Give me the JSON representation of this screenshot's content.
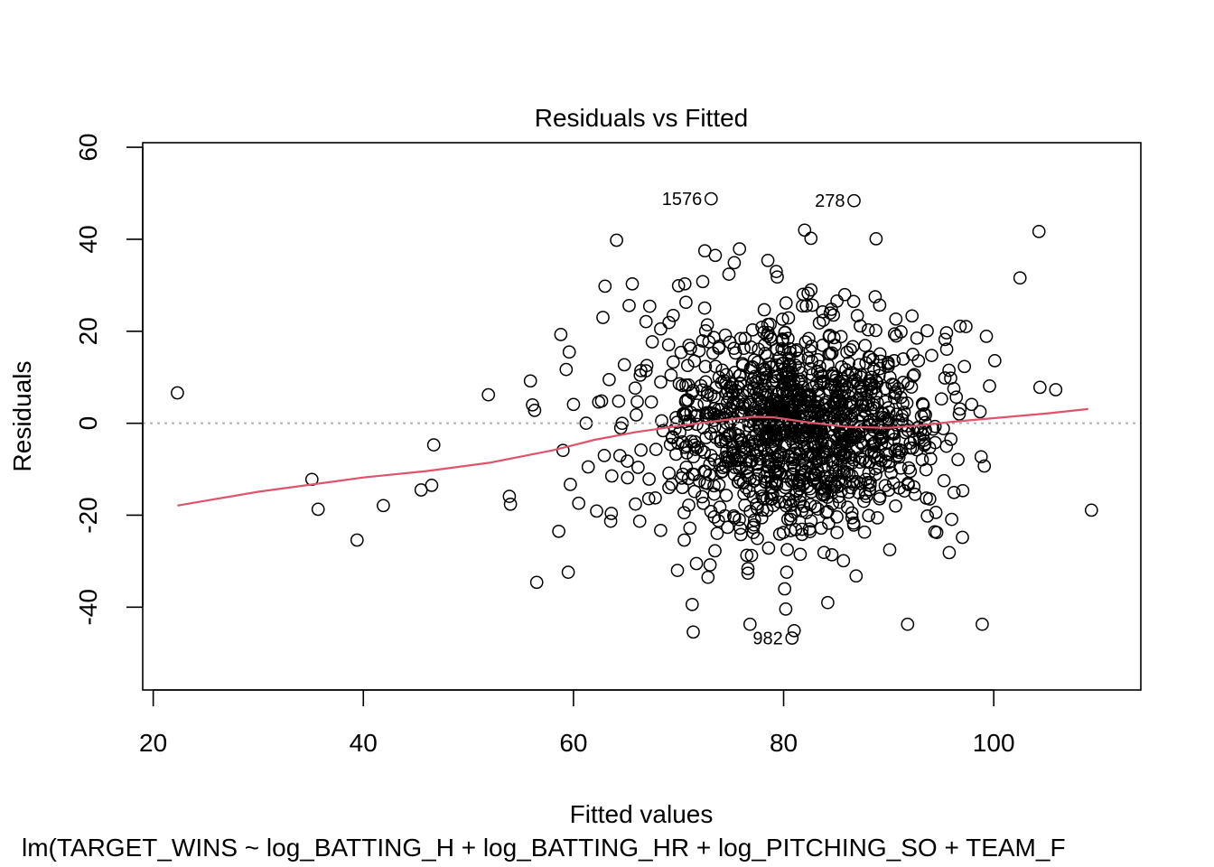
{
  "chart_data": {
    "type": "scatter",
    "title": "Residuals vs Fitted",
    "xlabel": "Fitted values",
    "ylabel": "Residuals",
    "subtitle": "lm(TARGET_WINS ~ log_BATTING_H + log_BATTING_HR + log_PITCHING_SO + TEAM_F",
    "xlim": [
      19,
      114
    ],
    "ylim": [
      -58,
      61
    ],
    "x_ticks": [
      20,
      40,
      60,
      80,
      100
    ],
    "y_ticks": [
      -40,
      -20,
      0,
      20,
      40,
      60
    ],
    "x_tick_labels": [
      "20",
      "40",
      "60",
      "80",
      "100"
    ],
    "y_tick_labels": [
      "-40",
      "-20",
      "0",
      "20",
      "40",
      "60"
    ],
    "reference_line": {
      "y": 0,
      "style": "dotted",
      "color": "#a6a6a6"
    },
    "smooth_color": "#df536b",
    "point_color": "#000000",
    "grid": false,
    "legend": "none",
    "labeled_points": [
      {
        "label": "1576",
        "x": 73.1,
        "y": 48.8
      },
      {
        "label": "278",
        "x": 86.7,
        "y": 48.4
      },
      {
        "label": "982",
        "x": 80.8,
        "y": -46.7
      }
    ],
    "smooth": [
      [
        22.3,
        -17.9
      ],
      [
        30,
        -14.9
      ],
      [
        40,
        -11.8
      ],
      [
        46,
        -10.4
      ],
      [
        52,
        -8.6
      ],
      [
        58,
        -5.9
      ],
      [
        62,
        -3.6
      ],
      [
        66,
        -1.9
      ],
      [
        70,
        -0.6
      ],
      [
        74,
        0.6
      ],
      [
        77,
        1.4
      ],
      [
        79,
        1.3
      ],
      [
        82,
        0.3
      ],
      [
        86,
        -0.8
      ],
      [
        90,
        -1.0
      ],
      [
        93,
        -0.5
      ],
      [
        96,
        0.3
      ],
      [
        100,
        1.1
      ],
      [
        105,
        2.1
      ],
      [
        109,
        3.1
      ]
    ],
    "outliers": [
      [
        22.3,
        6.6
      ],
      [
        35.1,
        -12.2
      ],
      [
        35.7,
        -18.7
      ],
      [
        39.4,
        -25.4
      ],
      [
        41.9,
        -17.9
      ],
      [
        45.5,
        -14.5
      ],
      [
        46.5,
        -13.5
      ],
      [
        46.7,
        -4.7
      ],
      [
        51.9,
        6.2
      ],
      [
        53.9,
        -15.9
      ],
      [
        54.0,
        -17.6
      ],
      [
        55.9,
        9.2
      ],
      [
        56.1,
        4.0
      ],
      [
        56.3,
        2.8
      ],
      [
        56.5,
        -34.6
      ],
      [
        58.6,
        -23.5
      ],
      [
        58.8,
        19.3
      ],
      [
        59.0,
        -5.9
      ],
      [
        59.3,
        11.7
      ],
      [
        59.6,
        15.5
      ],
      [
        59.5,
        -32.4
      ],
      [
        59.7,
        -13.3
      ],
      [
        60.0,
        4.1
      ],
      [
        60.5,
        -17.4
      ],
      [
        61.2,
        0.0
      ],
      [
        61.4,
        -9.5
      ],
      [
        62.2,
        -19.1
      ],
      [
        62.4,
        4.6
      ],
      [
        62.8,
        23.0
      ],
      [
        63.0,
        29.8
      ],
      [
        63.4,
        9.5
      ],
      [
        63.6,
        -19.6
      ],
      [
        64.1,
        39.8
      ],
      [
        64.3,
        4.8
      ],
      [
        65.3,
        25.6
      ],
      [
        65.6,
        30.3
      ],
      [
        66.3,
        -21.3
      ],
      [
        66.9,
        22.1
      ],
      [
        66.9,
        11.4
      ],
      [
        67.5,
        17.7
      ],
      [
        68.3,
        20.5
      ],
      [
        68.3,
        -23.3
      ],
      [
        69.1,
        21.9
      ],
      [
        69.9,
        -32.0
      ],
      [
        70.0,
        29.9
      ],
      [
        70.6,
        30.3
      ],
      [
        70.7,
        26.3
      ],
      [
        71.3,
        -39.4
      ],
      [
        71.4,
        -45.4
      ],
      [
        71.7,
        -30.5
      ],
      [
        72.3,
        30.8
      ],
      [
        72.5,
        37.5
      ],
      [
        73.0,
        -30.8
      ],
      [
        72.8,
        -33.5
      ],
      [
        73.5,
        36.5
      ],
      [
        74.8,
        32.4
      ],
      [
        75.3,
        34.9
      ],
      [
        75.8,
        37.9
      ],
      [
        76.6,
        -31.6
      ],
      [
        76.6,
        -32.6
      ],
      [
        76.8,
        -43.7
      ],
      [
        78.5,
        35.4
      ],
      [
        79.3,
        33.0
      ],
      [
        79.4,
        31.8
      ],
      [
        80.1,
        -36.0
      ],
      [
        80.2,
        -40.4
      ],
      [
        80.3,
        -32.4
      ],
      [
        81.0,
        -45.1
      ],
      [
        80.8,
        -46.7
      ],
      [
        82.0,
        42.0
      ],
      [
        82.6,
        40.2
      ],
      [
        84.2,
        -39.0
      ],
      [
        84.6,
        -28.6
      ],
      [
        85.7,
        -29.9
      ],
      [
        86.9,
        -33.2
      ],
      [
        88.8,
        40.1
      ],
      [
        90.1,
        -27.5
      ],
      [
        91.8,
        -43.7
      ],
      [
        94.4,
        -23.6
      ],
      [
        96.0,
        -20.9
      ],
      [
        98.9,
        -43.7
      ],
      [
        99.1,
        -9.3
      ],
      [
        99.3,
        18.9
      ],
      [
        98.8,
        -7.3
      ],
      [
        99.6,
        8.1
      ],
      [
        100.1,
        13.6
      ],
      [
        102.5,
        31.6
      ],
      [
        104.3,
        41.7
      ],
      [
        104.4,
        7.8
      ],
      [
        105.9,
        7.3
      ],
      [
        109.3,
        -18.9
      ],
      [
        96.8,
        21.1
      ],
      [
        95.9,
        9.8
      ],
      [
        96.2,
        7.5
      ],
      [
        97.9,
        4.1
      ],
      [
        98.7,
        2.5
      ],
      [
        95.5,
        -5.0
      ],
      [
        96.6,
        -7.9
      ],
      [
        73.1,
        48.8
      ],
      [
        86.7,
        48.4
      ]
    ],
    "cluster": {
      "count": 1250,
      "center_x": 81.8,
      "center_y": -0.8,
      "sd_x": 6.4,
      "sd_y": 11.6,
      "x_range": [
        62.5,
        97.5
      ],
      "y_range": [
        -29,
        29
      ],
      "seed": 982
    }
  }
}
